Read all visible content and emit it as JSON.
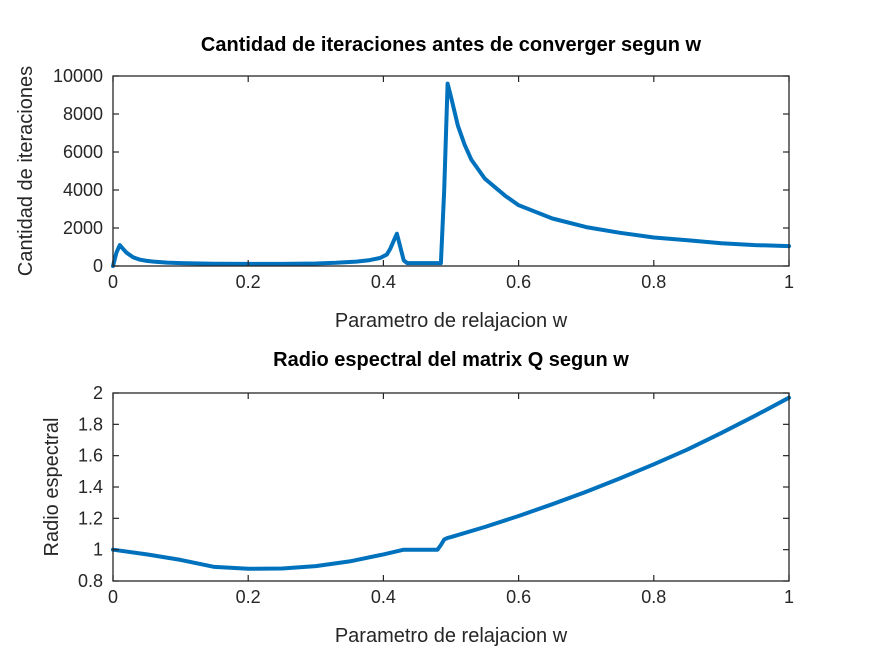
{
  "chart_data": [
    {
      "type": "line",
      "title": "Cantidad de iteraciones antes de converger segun w",
      "xlabel": "Parametro de relajacion w",
      "ylabel": "Cantidad de iteraciones",
      "xlim": [
        0,
        1
      ],
      "ylim": [
        0,
        10000
      ],
      "xticks": [
        0,
        0.2,
        0.4,
        0.6,
        0.8,
        1
      ],
      "xtick_labels": [
        "0",
        "0.2",
        "0.4",
        "0.6",
        "0.8",
        "1"
      ],
      "yticks": [
        0,
        2000,
        4000,
        6000,
        8000,
        10000
      ],
      "ytick_labels": [
        "0",
        "2000",
        "4000",
        "6000",
        "8000",
        "10000"
      ],
      "grid": false,
      "color": "#0072bd",
      "series": [
        {
          "x": [
            0,
            0.005,
            0.01,
            0.015,
            0.02,
            0.03,
            0.04,
            0.05,
            0.06,
            0.08,
            0.1,
            0.15,
            0.2,
            0.25,
            0.3,
            0.33,
            0.36,
            0.38,
            0.395,
            0.405,
            0.41,
            0.415,
            0.42,
            0.425,
            0.43,
            0.435,
            0.44,
            0.46,
            0.47,
            0.48,
            0.485,
            0.49,
            0.495,
            0.5,
            0.51,
            0.52,
            0.53,
            0.55,
            0.58,
            0.6,
            0.65,
            0.7,
            0.75,
            0.8,
            0.85,
            0.9,
            0.95,
            1.0
          ],
          "y": [
            0,
            700,
            1100,
            900,
            700,
            450,
            330,
            270,
            230,
            180,
            150,
            120,
            110,
            110,
            130,
            170,
            230,
            310,
            420,
            600,
            900,
            1300,
            1700,
            1000,
            300,
            150,
            150,
            150,
            150,
            150,
            150,
            4000,
            9600,
            8900,
            7400,
            6400,
            5600,
            4600,
            3700,
            3200,
            2500,
            2050,
            1750,
            1500,
            1350,
            1200,
            1100,
            1050
          ]
        }
      ]
    },
    {
      "type": "line",
      "title": "Radio espectral del matrix Q segun w",
      "xlabel": "Parametro de relajacion w",
      "ylabel": "Radio espectral",
      "xlim": [
        0,
        1
      ],
      "ylim": [
        0.8,
        2
      ],
      "xticks": [
        0,
        0.2,
        0.4,
        0.6,
        0.8,
        1
      ],
      "xtick_labels": [
        "0",
        "0.2",
        "0.4",
        "0.6",
        "0.8",
        "1"
      ],
      "yticks": [
        0.8,
        1,
        1.2,
        1.4,
        1.6,
        1.8,
        2
      ],
      "ytick_labels": [
        "0.8",
        "1",
        "1.2",
        "1.4",
        "1.6",
        "1.8",
        "2"
      ],
      "grid": false,
      "color": "#0072bd",
      "series": [
        {
          "x": [
            0,
            0.05,
            0.1,
            0.15,
            0.2,
            0.25,
            0.3,
            0.35,
            0.4,
            0.43,
            0.45,
            0.48,
            0.485,
            0.49,
            0.495,
            0.5,
            0.55,
            0.6,
            0.65,
            0.7,
            0.75,
            0.8,
            0.85,
            0.9,
            0.95,
            1.0
          ],
          "y": [
            1.0,
            0.97,
            0.935,
            0.89,
            0.878,
            0.88,
            0.895,
            0.925,
            0.97,
            1.0,
            1.0,
            1.0,
            1.03,
            1.065,
            1.075,
            1.08,
            1.145,
            1.215,
            1.29,
            1.37,
            1.455,
            1.545,
            1.64,
            1.745,
            1.855,
            1.97
          ]
        }
      ]
    }
  ]
}
